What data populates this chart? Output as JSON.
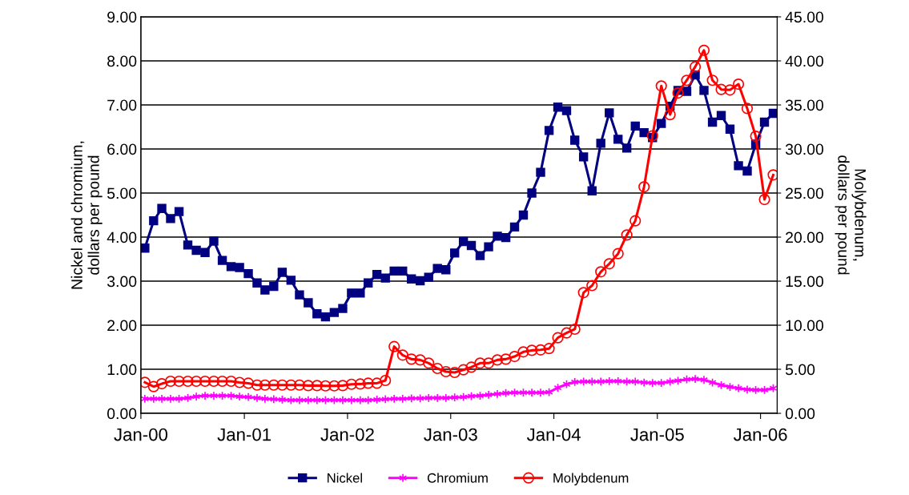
{
  "chart_data": {
    "type": "line",
    "ylabel": "Nickel and chromium,\ndollars per pound",
    "y2label": "Molybdenum,\ndollars per pound",
    "x": [
      "2000-01-15",
      "2000-02-15",
      "2000-03-15",
      "2000-04-15",
      "2000-05-15",
      "2000-06-15",
      "2000-07-15",
      "2000-08-15",
      "2000-09-15",
      "2000-10-15",
      "2000-11-15",
      "2000-12-15",
      "2001-01-15",
      "2001-02-15",
      "2001-03-15",
      "2001-04-15",
      "2001-05-15",
      "2001-06-15",
      "2001-07-15",
      "2001-08-15",
      "2001-09-15",
      "2001-10-15",
      "2001-11-15",
      "2001-12-15",
      "2002-01-15",
      "2002-02-15",
      "2002-03-15",
      "2002-04-15",
      "2002-05-15",
      "2002-06-15",
      "2002-07-15",
      "2002-08-15",
      "2002-09-15",
      "2002-10-15",
      "2002-11-15",
      "2002-12-15",
      "2003-01-15",
      "2003-02-15",
      "2003-03-15",
      "2003-04-15",
      "2003-05-15",
      "2003-06-15",
      "2003-07-15",
      "2003-08-15",
      "2003-09-15",
      "2003-10-15",
      "2003-11-15",
      "2003-12-15",
      "2004-01-15",
      "2004-02-15",
      "2004-03-15",
      "2004-04-15",
      "2004-05-15",
      "2004-06-15",
      "2004-07-15",
      "2004-08-15",
      "2004-09-15",
      "2004-10-15",
      "2004-11-15",
      "2004-12-15",
      "2005-01-15",
      "2005-02-15",
      "2005-03-15",
      "2005-04-15",
      "2005-05-15",
      "2005-06-15",
      "2005-07-15",
      "2005-08-15",
      "2005-09-15",
      "2005-10-15",
      "2005-11-15",
      "2005-12-15",
      "2006-01-15",
      "2006-02-15"
    ],
    "series": [
      {
        "name": "Nickel",
        "color": "#000080",
        "marker": "square",
        "values": [
          3.75,
          4.37,
          4.65,
          4.42,
          4.58,
          3.82,
          3.7,
          3.65,
          3.91,
          3.47,
          3.33,
          3.31,
          3.17,
          2.96,
          2.8,
          2.88,
          3.2,
          3.02,
          2.69,
          2.51,
          2.26,
          2.19,
          2.29,
          2.38,
          2.73,
          2.73,
          2.96,
          3.15,
          3.07,
          3.23,
          3.23,
          3.05,
          3.01,
          3.09,
          3.29,
          3.26,
          3.64,
          3.9,
          3.81,
          3.58,
          3.78,
          4.02,
          3.99,
          4.23,
          4.5,
          5.0,
          5.47,
          6.42,
          6.95,
          6.87,
          6.2,
          5.82,
          5.05,
          6.13,
          6.82,
          6.22,
          6.02,
          6.52,
          6.37,
          6.26,
          6.58,
          6.97,
          7.33,
          7.31,
          7.68,
          7.33,
          6.61,
          6.76,
          6.45,
          5.62,
          5.5,
          6.11,
          6.61,
          6.81
        ]
      },
      {
        "name": "Chromium",
        "color": "#ff00ff",
        "marker": "cross",
        "values": [
          0.33,
          0.33,
          0.33,
          0.33,
          0.33,
          0.35,
          0.38,
          0.4,
          0.4,
          0.4,
          0.4,
          0.38,
          0.37,
          0.35,
          0.33,
          0.32,
          0.31,
          0.3,
          0.3,
          0.3,
          0.3,
          0.3,
          0.3,
          0.3,
          0.3,
          0.3,
          0.3,
          0.31,
          0.32,
          0.33,
          0.33,
          0.34,
          0.34,
          0.35,
          0.35,
          0.35,
          0.36,
          0.37,
          0.39,
          0.4,
          0.42,
          0.44,
          0.46,
          0.47,
          0.47,
          0.47,
          0.47,
          0.48,
          0.58,
          0.66,
          0.71,
          0.72,
          0.72,
          0.72,
          0.73,
          0.73,
          0.72,
          0.72,
          0.7,
          0.69,
          0.69,
          0.72,
          0.74,
          0.77,
          0.78,
          0.76,
          0.7,
          0.64,
          0.6,
          0.57,
          0.54,
          0.53,
          0.53,
          0.57
        ]
      },
      {
        "name": "Molybdenum",
        "color": "#ff0000",
        "marker": "circle",
        "axis": "y2",
        "values": [
          3.52,
          3.03,
          3.36,
          3.64,
          3.64,
          3.64,
          3.64,
          3.64,
          3.64,
          3.64,
          3.64,
          3.5,
          3.42,
          3.21,
          3.21,
          3.21,
          3.21,
          3.21,
          3.21,
          3.15,
          3.15,
          3.12,
          3.12,
          3.15,
          3.3,
          3.33,
          3.42,
          3.42,
          3.73,
          7.58,
          6.61,
          6.15,
          6.06,
          5.7,
          5.09,
          4.73,
          4.64,
          4.94,
          5.24,
          5.7,
          5.7,
          6.06,
          6.15,
          6.45,
          6.97,
          7.15,
          7.2,
          7.35,
          8.58,
          9.12,
          9.55,
          13.7,
          14.5,
          16.06,
          16.97,
          18.12,
          20.24,
          21.85,
          25.7,
          31.5,
          37.15,
          33.9,
          36.36,
          37.8,
          39.33,
          41.2,
          37.8,
          36.76,
          36.7,
          37.36,
          34.6,
          31.45,
          24.27,
          27.06
        ]
      }
    ],
    "xlim": [
      "2000-01-01",
      "2006-03-01"
    ],
    "xticks": [
      {
        "value": "2000-01-01",
        "label": "Jan-00"
      },
      {
        "value": "2001-01-01",
        "label": "Jan-01"
      },
      {
        "value": "2002-01-01",
        "label": "Jan-02"
      },
      {
        "value": "2003-01-01",
        "label": "Jan-03"
      },
      {
        "value": "2004-01-01",
        "label": "Jan-04"
      },
      {
        "value": "2005-01-01",
        "label": "Jan-05"
      },
      {
        "value": "2006-01-01",
        "label": "Jan-06"
      }
    ],
    "ylim": [
      0,
      9
    ],
    "yticks": [
      {
        "value": 0,
        "label": "0.00"
      },
      {
        "value": 1,
        "label": "1.00"
      },
      {
        "value": 2,
        "label": "2.00"
      },
      {
        "value": 3,
        "label": "3.00"
      },
      {
        "value": 4,
        "label": "4.00"
      },
      {
        "value": 5,
        "label": "5.00"
      },
      {
        "value": 6,
        "label": "6.00"
      },
      {
        "value": 7,
        "label": "7.00"
      },
      {
        "value": 8,
        "label": "8.00"
      },
      {
        "value": 9,
        "label": "9.00"
      }
    ],
    "y2lim": [
      0,
      45
    ],
    "y2ticks": [
      {
        "value": 0,
        "label": "0.00"
      },
      {
        "value": 5,
        "label": "5.00"
      },
      {
        "value": 10,
        "label": "10.00"
      },
      {
        "value": 15,
        "label": "15.00"
      },
      {
        "value": 20,
        "label": "20.00"
      },
      {
        "value": 25,
        "label": "25.00"
      },
      {
        "value": 30,
        "label": "30.00"
      },
      {
        "value": 35,
        "label": "35.00"
      },
      {
        "value": 40,
        "label": "40.00"
      },
      {
        "value": 45,
        "label": "45.00"
      }
    ],
    "grid": "y",
    "legend": "bottom",
    "line_style": "solid"
  }
}
